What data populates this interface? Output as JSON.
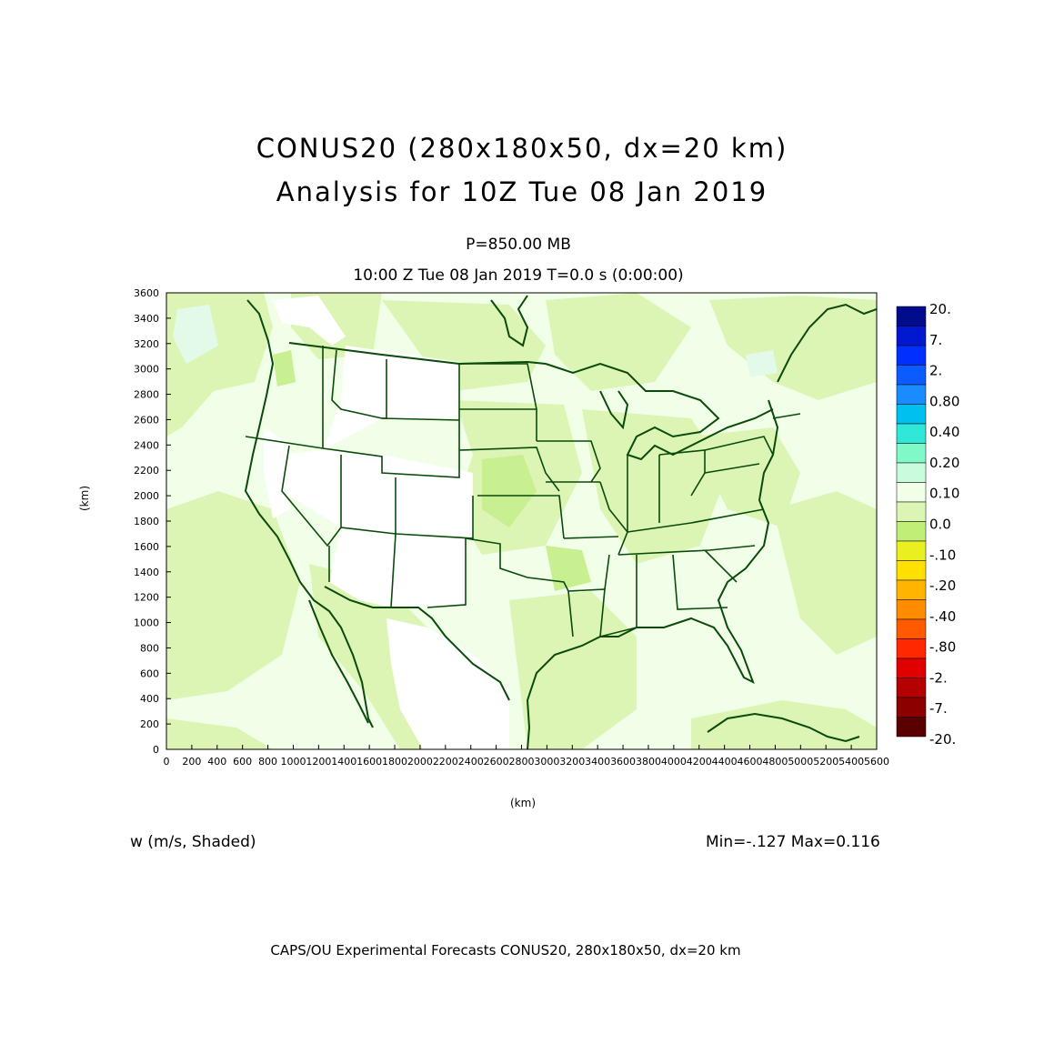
{
  "title": {
    "line1": "CONUS20 (280x180x50, dx=20 km)",
    "line2": "Analysis for 10Z Tue 08 Jan 2019"
  },
  "subtitle": {
    "level": "P=850.00 MB",
    "time": "10:00 Z Tue 08 Jan 2019    T=0.0 s (0:00:00)"
  },
  "axes": {
    "xlabel": "(km)",
    "ylabel": "(km)",
    "xticks": [
      "0",
      "200",
      "400",
      "600",
      "800",
      "1000",
      "1200",
      "1400",
      "1600",
      "1800",
      "2000",
      "2200",
      "2400",
      "2600",
      "2800",
      "3000",
      "3200",
      "3400",
      "3600",
      "3800",
      "4000",
      "4200",
      "4400",
      "4600",
      "4800",
      "5000",
      "5200",
      "5400",
      "5600"
    ],
    "yticks": [
      "0",
      "200",
      "400",
      "600",
      "800",
      "1000",
      "1200",
      "1400",
      "1600",
      "1800",
      "2000",
      "2200",
      "2400",
      "2600",
      "2800",
      "3000",
      "3200",
      "3400",
      "3600"
    ],
    "xlim": [
      0,
      5600
    ],
    "ylim": [
      0,
      3600
    ]
  },
  "variable": "w (m/s, Shaded)",
  "minmax": "Min=-.127  Max=0.116",
  "footer": "CAPS/OU Experimental Forecasts  CONUS20, 280x180x50, dx=20 km",
  "colorbar": {
    "labels": [
      "20.",
      "7.",
      "2.",
      "0.80",
      "0.40",
      "0.20",
      "0.10",
      "0.0",
      "-.10",
      "-.20",
      "-.40",
      "-.80",
      "-2.",
      "-7.",
      "-20."
    ],
    "colors": [
      "#000c8c",
      "#0018d0",
      "#0030ff",
      "#0a5cff",
      "#1a8cff",
      "#00c0f0",
      "#30e8d8",
      "#80f8c8",
      "#c8fcdc",
      "#f2ffe8",
      "#dcf5b4",
      "#c0ef78",
      "#e8f020",
      "#ffe000",
      "#ffb400",
      "#ff8c00",
      "#ff5a00",
      "#ff2800",
      "#e00000",
      "#b40000",
      "#8c0000",
      "#5a0000"
    ]
  },
  "chart_data": {
    "type": "heatmap",
    "title": "CONUS20 (280x180x50, dx=20 km) Analysis for 10Z Tue 08 Jan 2019",
    "field": "w (m/s, Shaded)",
    "level": "P=850.00 MB",
    "xlabel": "(km)",
    "ylabel": "(km)",
    "xlim": [
      0,
      5600
    ],
    "ylim": [
      0,
      3600
    ],
    "min": -0.127,
    "max": 0.116,
    "levels": [
      -20,
      -7,
      -2,
      -0.8,
      -0.4,
      -0.2,
      -0.1,
      0.0,
      0.1,
      0.2,
      0.4,
      0.8,
      2,
      7,
      20
    ],
    "grid": false,
    "legend": "right"
  },
  "colors": {
    "background": "#f2ffe8",
    "weak_negative": "#dcf5b4",
    "moderate_negative": "#c0ef78",
    "zero": "#ffffff",
    "weak_positive": "#e4fae8",
    "map_lines": "#0a4a0a"
  }
}
